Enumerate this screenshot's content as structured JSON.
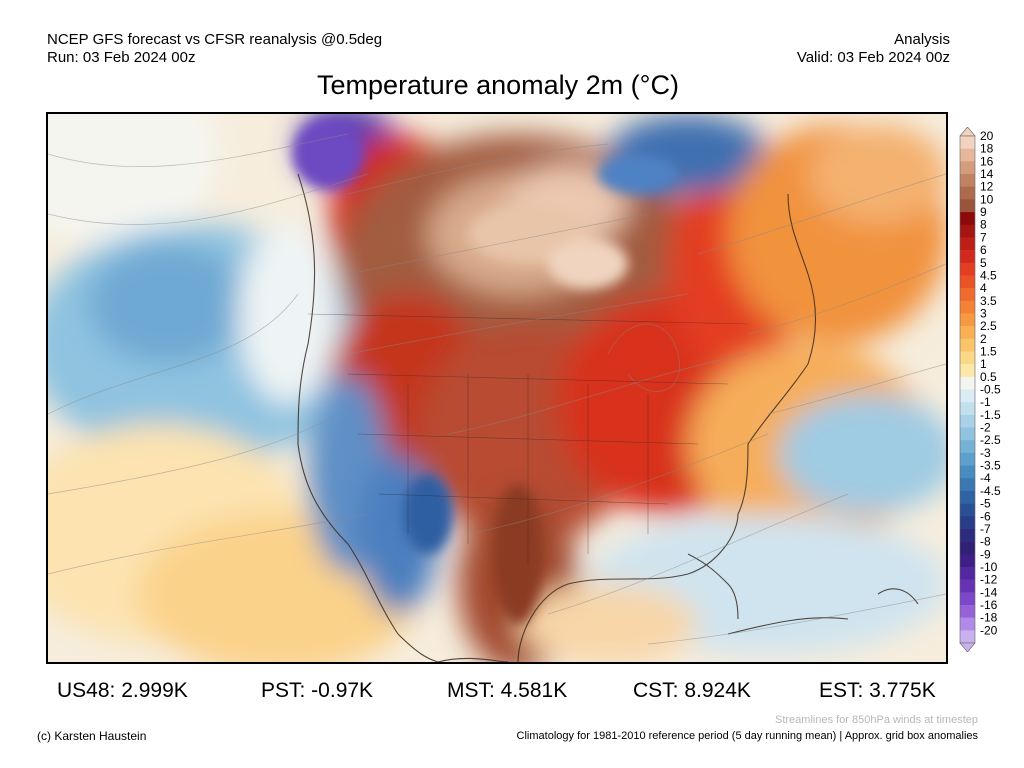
{
  "header": {
    "line1_left": "NCEP GFS forecast vs CFSR reanalysis @0.5deg",
    "line2_left": "Run: 03 Feb 2024 00z",
    "line1_right": "Analysis",
    "line2_right": "Valid: 03 Feb 2024 00z"
  },
  "title": "Temperature anomaly 2m (°C)",
  "colorbar": {
    "labels": [
      "20",
      "18",
      "16",
      "14",
      "12",
      "10",
      "9",
      "8",
      "7",
      "6",
      "5",
      "4.5",
      "4",
      "3.5",
      "3",
      "2.5",
      "2",
      "1.5",
      "1",
      "0.5",
      "-0.5",
      "-1",
      "-1.5",
      "-2",
      "-2.5",
      "-3",
      "-3.5",
      "-4",
      "-4.5",
      "-5",
      "-6",
      "-7",
      "-8",
      "-9",
      "-10",
      "-12",
      "-14",
      "-16",
      "-18",
      "-20"
    ],
    "colors": [
      "#f3d2c0",
      "#e6b79c",
      "#d39c7b",
      "#bf8262",
      "#ad6a4c",
      "#9a543b",
      "#8e0a0a",
      "#a51512",
      "#bd1f17",
      "#d2291d",
      "#e33d22",
      "#ea5326",
      "#ef6a2c",
      "#f38235",
      "#f69a42",
      "#f8b052",
      "#fac56a",
      "#fbd887",
      "#fce8a9",
      "#f5f5f0",
      "#dbecf5",
      "#c3e0ef",
      "#a9d2e8",
      "#8fc3e0",
      "#76b2d6",
      "#5ea0cc",
      "#498dc0",
      "#3b78b2",
      "#2f63a4",
      "#294f95",
      "#2a3d88",
      "#2d2b7e",
      "#322074",
      "#3f1f86",
      "#5227a0",
      "#6633b5",
      "#7c47c8",
      "#9563d7",
      "#b08ae4",
      "#c9b0ee"
    ]
  },
  "stats": {
    "us48": "US48: 2.999K",
    "pst": "PST: -0.97K",
    "mst": "MST: 4.581K",
    "cst": "CST: 8.924K",
    "est": "EST: 3.775K"
  },
  "footer": {
    "streamlines_note": "Streamlines for 850hPa winds at timestep",
    "copyright": "(c) Karsten Haustein",
    "climatology_note": "Climatology for 1981-2010 reference period (5 day running mean) | Approx. grid box anomalies"
  }
}
